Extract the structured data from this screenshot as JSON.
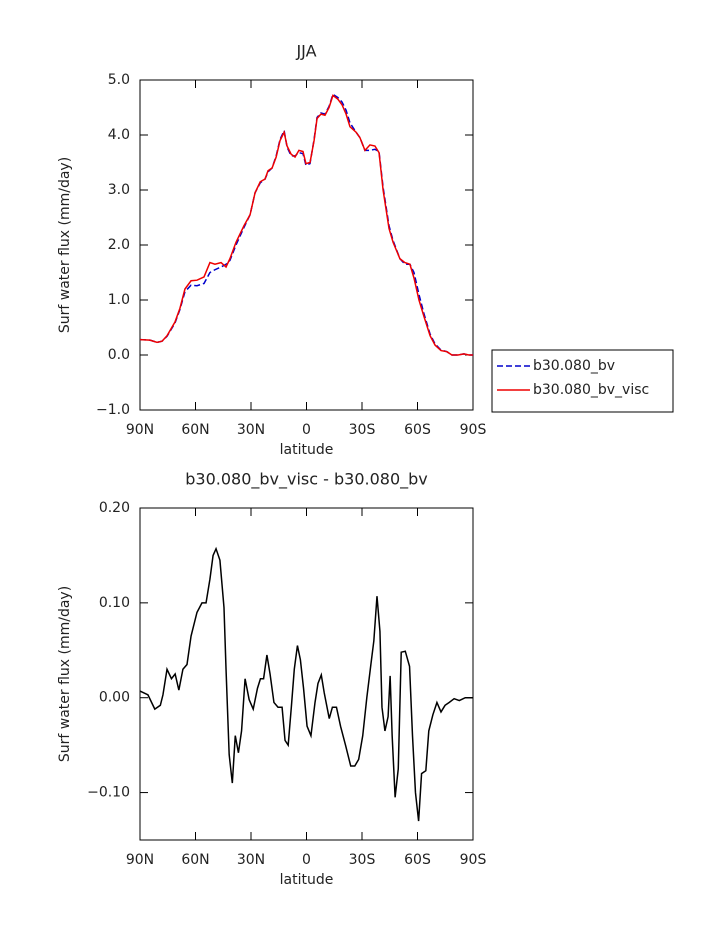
{
  "chart_data": [
    {
      "type": "line",
      "title": "JJA",
      "xlabel": "latitude",
      "ylabel": "Surf water flux (mm/day)",
      "xlim": [
        90,
        -90
      ],
      "ylim": [
        -1,
        5
      ],
      "xticks": [
        {
          "value": 90,
          "label": "90N"
        },
        {
          "value": 60,
          "label": "60N"
        },
        {
          "value": 30,
          "label": "30N"
        },
        0,
        {
          "value": -30,
          "label": "30S"
        },
        {
          "value": -60,
          "label": "60S"
        },
        {
          "value": -90,
          "label": "90S"
        }
      ],
      "yticks": [
        {
          "value": -1,
          "label": "−1.0"
        },
        {
          "value": 0,
          "label": "0.0"
        },
        {
          "value": 1,
          "label": "1.0"
        },
        {
          "value": 2,
          "label": "2.0"
        },
        {
          "value": 3,
          "label": "3.0"
        },
        {
          "value": 4,
          "label": "4.0"
        },
        {
          "value": 5,
          "label": "5.0"
        }
      ],
      "legend": "right",
      "x": [
        90,
        84.6,
        80.8,
        78.1,
        75.4,
        71.1,
        68.4,
        65.7,
        62.4,
        59.2,
        55.4,
        52.2,
        49.5,
        46.2,
        43.5,
        41.4,
        38.1,
        33.8,
        30.5,
        27.8,
        25,
        22.4,
        20.8,
        18.6,
        16.4,
        14.3,
        12.1,
        10.5,
        8.3,
        6.2,
        4.1,
        1.9,
        0.3,
        -1.9,
        -4.1,
        -5.7,
        -7.8,
        -10,
        -12.2,
        -14.3,
        -17,
        -19.2,
        -21.4,
        -23.5,
        -26.8,
        -28.9,
        -31.6,
        -34.3,
        -37,
        -39.2,
        -41.4,
        -44.6,
        -46.8,
        -50.5,
        -53.2,
        -55.9,
        -58.1,
        -60.8,
        -63.5,
        -66.8,
        -69.5,
        -72.7,
        -75.9,
        -78.6,
        -81.9,
        -85.1,
        -87.8,
        -90
      ],
      "series": [
        {
          "name": "b30.080_bv",
          "color": "#0000cc",
          "style": "dashed",
          "values": [
            0.28,
            0.27,
            0.23,
            0.25,
            0.34,
            0.58,
            0.83,
            1.15,
            1.27,
            1.26,
            1.3,
            1.5,
            1.55,
            1.6,
            1.65,
            1.72,
            2.0,
            2.32,
            2.55,
            2.95,
            3.13,
            3.2,
            3.33,
            3.4,
            3.62,
            3.92,
            4.08,
            3.78,
            3.62,
            3.62,
            3.68,
            3.66,
            3.45,
            3.48,
            3.92,
            4.32,
            4.4,
            4.38,
            4.52,
            4.74,
            4.68,
            4.6,
            4.45,
            4.22,
            4.05,
            3.95,
            3.72,
            3.72,
            3.74,
            3.7,
            3.05,
            2.35,
            2.08,
            1.75,
            1.65,
            1.65,
            1.5,
            1.1,
            0.75,
            0.38,
            0.2,
            0.09,
            0.06,
            0.0,
            0.0,
            0.02,
            0.0,
            0.0
          ]
        },
        {
          "name": "b30.080_bv_visc",
          "color": "#ee0000",
          "style": "solid",
          "values": [
            0.28,
            0.27,
            0.23,
            0.25,
            0.35,
            0.6,
            0.85,
            1.2,
            1.35,
            1.36,
            1.42,
            1.68,
            1.65,
            1.68,
            1.6,
            1.75,
            2.05,
            2.35,
            2.55,
            2.95,
            3.15,
            3.2,
            3.35,
            3.4,
            3.6,
            3.9,
            4.05,
            3.8,
            3.65,
            3.6,
            3.72,
            3.7,
            3.48,
            3.5,
            3.9,
            4.3,
            4.38,
            4.36,
            4.5,
            4.72,
            4.65,
            4.55,
            4.38,
            4.15,
            4.05,
            3.95,
            3.72,
            3.82,
            3.8,
            3.68,
            3.0,
            2.3,
            2.05,
            1.75,
            1.68,
            1.65,
            1.4,
            1.0,
            0.7,
            0.35,
            0.18,
            0.08,
            0.06,
            0.0,
            0.0,
            0.02,
            0.0,
            0.0
          ]
        }
      ]
    },
    {
      "type": "line",
      "title": "b30.080_bv_visc - b30.080_bv",
      "xlabel": "latitude",
      "ylabel": "Surf water flux (mm/day)",
      "xlim": [
        90,
        -90
      ],
      "ylim": [
        -0.15,
        0.2
      ],
      "xticks": [
        {
          "value": 90,
          "label": "90N"
        },
        {
          "value": 60,
          "label": "60N"
        },
        {
          "value": 30,
          "label": "30N"
        },
        0,
        {
          "value": -30,
          "label": "30S"
        },
        {
          "value": -60,
          "label": "60S"
        },
        {
          "value": -90,
          "label": "90S"
        }
      ],
      "yticks": [
        {
          "value": -0.1,
          "label": "−0.10"
        },
        {
          "value": 0,
          "label": "0.00"
        },
        {
          "value": 0.1,
          "label": "0.10"
        },
        {
          "value": 0.2,
          "label": "0.20"
        }
      ],
      "color": "#000000",
      "x": [
        90,
        85.7,
        82,
        79,
        77.6,
        75.4,
        73,
        71,
        69,
        66.8,
        64.6,
        62.4,
        59.2,
        56.5,
        54.3,
        52.2,
        50.5,
        48.9,
        46.8,
        44.6,
        43.5,
        41.8,
        40.1,
        38.5,
        36.8,
        35.1,
        33.2,
        31,
        28.8,
        26.5,
        24.9,
        23.2,
        21.4,
        19.7,
        17.6,
        15.4,
        13.2,
        11.6,
        9.9,
        8.2,
        6.6,
        4.9,
        3.3,
        1.6,
        -0.3,
        -2.4,
        -4.6,
        -6.2,
        -8,
        -9.6,
        -12.3,
        -14,
        -16.2,
        -18.4,
        -21.1,
        -23.9,
        -26.1,
        -28.2,
        -30.4,
        -32.6,
        -34.8,
        -36.4,
        -38.1,
        -39.7,
        -40.8,
        -42.4,
        -44.1,
        -45.2,
        -46.3,
        -47.9,
        -49.6,
        -51.2,
        -53.4,
        -55.7,
        -57.3,
        -58.9,
        -60.6,
        -62.2,
        -64.5,
        -66.1,
        -68.3,
        -70.5,
        -72.7,
        -74.9,
        -77.1,
        -79.8,
        -82.6,
        -85.8,
        -90
      ],
      "values": [
        0.007,
        0.003,
        -0.012,
        -0.008,
        0.003,
        0.03,
        0.02,
        0.025,
        0.008,
        0.03,
        0.035,
        0.065,
        0.09,
        0.1,
        0.1,
        0.125,
        0.15,
        0.157,
        0.145,
        0.095,
        0.03,
        -0.06,
        -0.09,
        -0.04,
        -0.058,
        -0.035,
        0.02,
        -0.002,
        -0.012,
        0.01,
        0.02,
        0.02,
        0.045,
        0.025,
        -0.005,
        -0.01,
        -0.01,
        -0.045,
        -0.05,
        -0.01,
        0.03,
        0.055,
        0.04,
        0.01,
        -0.03,
        -0.04,
        -0.005,
        0.015,
        0.024,
        0.005,
        -0.022,
        -0.01,
        -0.01,
        -0.03,
        -0.05,
        -0.072,
        -0.072,
        -0.065,
        -0.04,
        0.0,
        0.035,
        0.06,
        0.107,
        0.07,
        -0.01,
        -0.035,
        -0.02,
        0.023,
        -0.04,
        -0.105,
        -0.075,
        0.048,
        0.049,
        0.033,
        -0.04,
        -0.1,
        -0.13,
        -0.08,
        -0.077,
        -0.035,
        -0.018,
        -0.005,
        -0.015,
        -0.008,
        -0.005,
        -0.001,
        -0.003,
        0.0,
        0.0
      ]
    }
  ]
}
